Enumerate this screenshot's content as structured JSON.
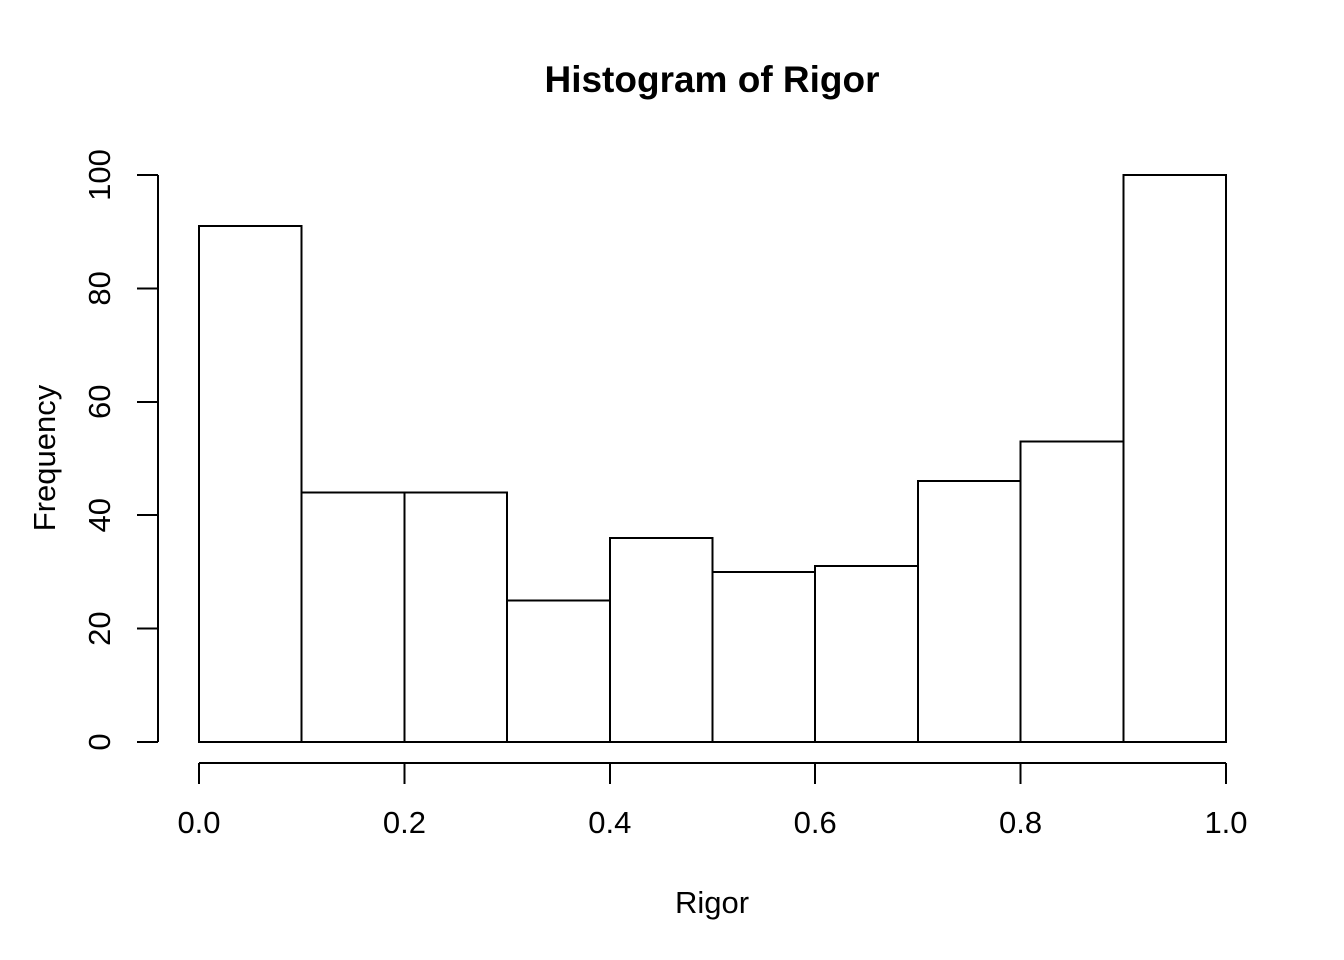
{
  "figure": {
    "background_color": "#ffffff",
    "foreground_color": "#000000"
  },
  "chart_data": {
    "type": "bar",
    "subtype": "histogram",
    "title": "Histogram of Rigor",
    "xlabel": "Rigor",
    "ylabel": "Frequency",
    "bin_edges": [
      0.0,
      0.1,
      0.2,
      0.3,
      0.4,
      0.5,
      0.6,
      0.7,
      0.8,
      0.9,
      1.0
    ],
    "frequencies": [
      91,
      44,
      44,
      25,
      36,
      30,
      31,
      46,
      53,
      100
    ],
    "x_tick_values": [
      0.0,
      0.2,
      0.4,
      0.6,
      0.8,
      1.0
    ],
    "x_tick_labels": [
      "0.0",
      "0.2",
      "0.4",
      "0.6",
      "0.8",
      "1.0"
    ],
    "y_tick_values": [
      0,
      20,
      40,
      60,
      80,
      100
    ],
    "y_tick_labels": [
      "0",
      "20",
      "40",
      "60",
      "80",
      "100"
    ],
    "xlim": [
      0.0,
      1.0
    ],
    "ylim": [
      0,
      100
    ],
    "grid": "off",
    "legend": "none",
    "bar_fill": "#ffffff",
    "bar_border": "#000000",
    "axis_color": "#000000"
  }
}
